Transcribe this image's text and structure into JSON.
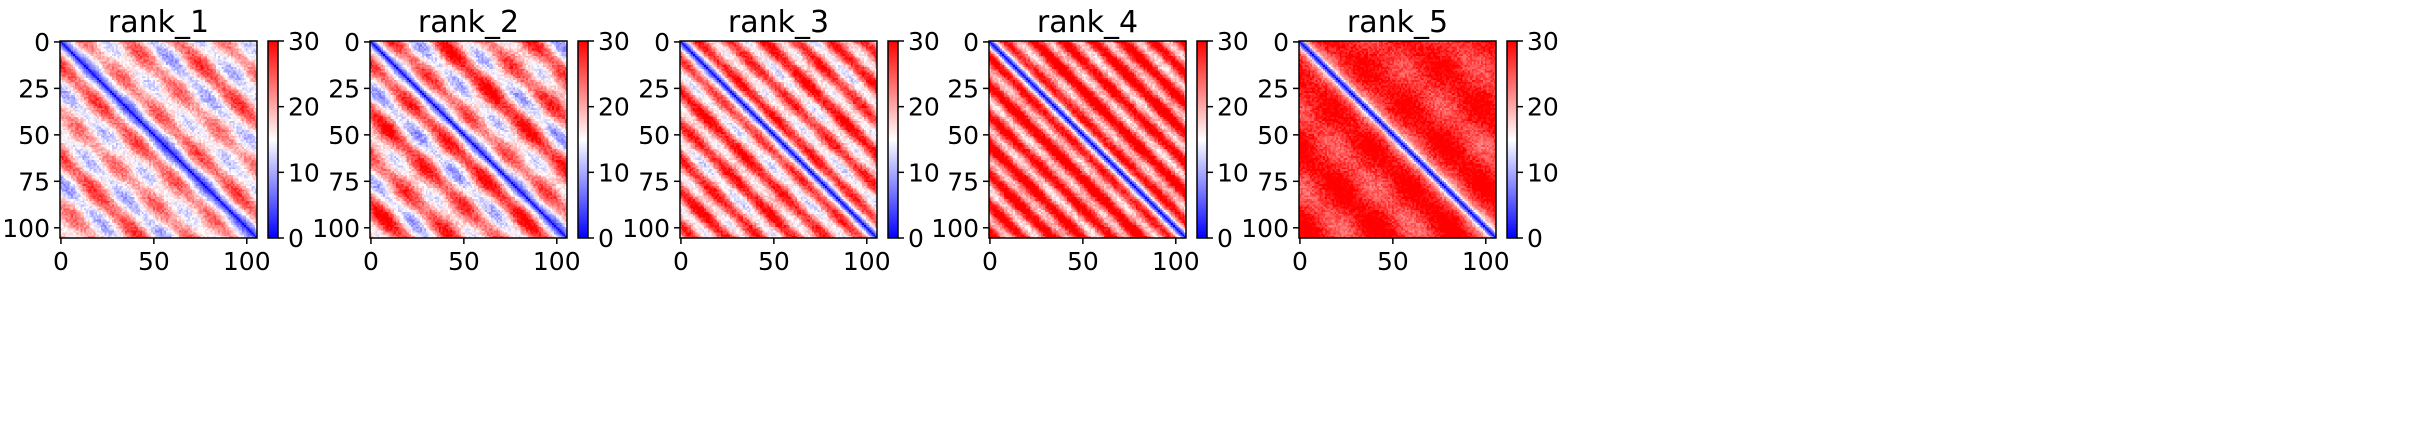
{
  "chart_data": [
    {
      "type": "heatmap",
      "title": "rank_1",
      "matrix_size": 106,
      "x_ticks": [
        "0",
        "50",
        "100"
      ],
      "y_ticks": [
        "0",
        "25",
        "50",
        "75",
        "100"
      ],
      "xlim": [
        0,
        105
      ],
      "ylim": [
        105,
        0
      ],
      "colorbar": {
        "cmap": "bwr",
        "range": [
          0,
          30
        ],
        "ticks": [
          "0",
          "10",
          "20",
          "30"
        ]
      },
      "pattern": {
        "diagonal_value": 2,
        "background_value": 18,
        "band_spacing": 25,
        "band_amplitude": 6,
        "blob_amplitude": 4
      }
    },
    {
      "type": "heatmap",
      "title": "rank_2",
      "matrix_size": 106,
      "x_ticks": [
        "0",
        "50",
        "100"
      ],
      "y_ticks": [
        "0",
        "25",
        "50",
        "75",
        "100"
      ],
      "xlim": [
        0,
        105
      ],
      "ylim": [
        105,
        0
      ],
      "colorbar": {
        "cmap": "bwr",
        "range": [
          0,
          30
        ],
        "ticks": [
          "0",
          "10",
          "20",
          "30"
        ]
      },
      "pattern": {
        "diagonal_value": 2,
        "background_value": 20,
        "band_spacing": 25,
        "band_amplitude": 7,
        "blob_amplitude": 5
      }
    },
    {
      "type": "heatmap",
      "title": "rank_3",
      "matrix_size": 106,
      "x_ticks": [
        "0",
        "50",
        "100"
      ],
      "y_ticks": [
        "0",
        "25",
        "50",
        "75",
        "100"
      ],
      "xlim": [
        0,
        105
      ],
      "ylim": [
        105,
        0
      ],
      "colorbar": {
        "cmap": "bwr",
        "range": [
          0,
          30
        ],
        "ticks": [
          "0",
          "10",
          "20",
          "30"
        ]
      },
      "pattern": {
        "diagonal_value": 2,
        "background_value": 22,
        "band_spacing": 18,
        "band_amplitude": 7,
        "blob_amplitude": 3
      }
    },
    {
      "type": "heatmap",
      "title": "rank_4",
      "matrix_size": 106,
      "x_ticks": [
        "0",
        "50",
        "100"
      ],
      "y_ticks": [
        "0",
        "25",
        "50",
        "75",
        "100"
      ],
      "xlim": [
        0,
        105
      ],
      "ylim": [
        105,
        0
      ],
      "colorbar": {
        "cmap": "bwr",
        "range": [
          0,
          30
        ],
        "ticks": [
          "0",
          "10",
          "20",
          "30"
        ]
      },
      "pattern": {
        "diagonal_value": 2,
        "background_value": 25,
        "band_spacing": 16,
        "band_amplitude": 7,
        "blob_amplitude": 2
      }
    },
    {
      "type": "heatmap",
      "title": "rank_5",
      "matrix_size": 106,
      "x_ticks": [
        "0",
        "50",
        "100"
      ],
      "y_ticks": [
        "0",
        "25",
        "50",
        "75",
        "100"
      ],
      "xlim": [
        0,
        105
      ],
      "ylim": [
        105,
        0
      ],
      "colorbar": {
        "cmap": "bwr",
        "range": [
          0,
          30
        ],
        "ticks": [
          "0",
          "10",
          "20",
          "30"
        ]
      },
      "pattern": {
        "diagonal_value": 2,
        "background_value": 28,
        "band_spacing": 40,
        "band_amplitude": 3,
        "blob_amplitude": 2
      }
    }
  ]
}
